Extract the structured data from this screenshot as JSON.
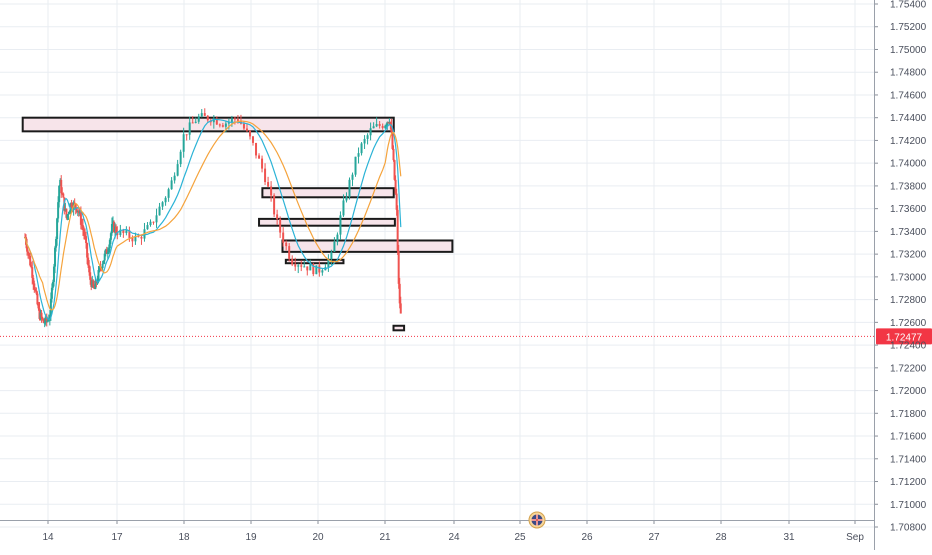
{
  "chart_data": {
    "type": "candlestick",
    "title": "",
    "xlabel": "",
    "ylabel": "",
    "ylim": [
      1.708,
      1.7542
    ],
    "y_ticks": [
      "1.75400",
      "1.75200",
      "1.75000",
      "1.74800",
      "1.74600",
      "1.74400",
      "1.74200",
      "1.74000",
      "1.73800",
      "1.73600",
      "1.73400",
      "1.73200",
      "1.73000",
      "1.72800",
      "1.72600",
      "1.72400",
      "1.72200",
      "1.72000",
      "1.71800",
      "1.71600",
      "1.71400",
      "1.71200",
      "1.71000",
      "1.70800"
    ],
    "x_ticks": [
      "14",
      "17",
      "18",
      "19",
      "20",
      "21",
      "24",
      "25",
      "26",
      "27",
      "28",
      "31",
      "Sep"
    ],
    "grid": true,
    "current_price": {
      "value": 1.72477,
      "label": "1.72477",
      "color": "#f23645"
    },
    "colors": {
      "up": "#26a69a",
      "down": "#ef5350",
      "ma_fast": "#2bb3d6",
      "ma_slow": "#f5a33c",
      "zone_fill": "#f7e4ea",
      "zone_border": "#1a1a1a",
      "grid": "#e9edf2"
    },
    "price_path": {
      "x_days": [
        13.0,
        13.3,
        13.6,
        13.8,
        14.0,
        14.1,
        14.3,
        14.5,
        14.8,
        15.0,
        15.3,
        15.6,
        15.8,
        16.0,
        16.3,
        16.6,
        16.8,
        17.0,
        17.3,
        17.5,
        17.8,
        18.0,
        18.2,
        18.4,
        18.6,
        18.8,
        19.0,
        19.2,
        19.4,
        19.6,
        19.8,
        20.0,
        20.2,
        20.4,
        20.6,
        20.8,
        21.0,
        21.2,
        21.3,
        21.5,
        21.6,
        21.7
      ],
      "closes": [
        1.7335,
        1.7305,
        1.7268,
        1.726,
        1.7262,
        1.727,
        1.7322,
        1.7385,
        1.7352,
        1.7365,
        1.736,
        1.7335,
        1.73,
        1.7288,
        1.731,
        1.7325,
        1.7345,
        1.734,
        1.7333,
        1.7345,
        1.738,
        1.7425,
        1.744,
        1.744,
        1.7435,
        1.744,
        1.742,
        1.739,
        1.7345,
        1.7315,
        1.731,
        1.7305,
        1.7318,
        1.7368,
        1.741,
        1.743,
        1.7435,
        1.744,
        1.742,
        1.736,
        1.7288,
        1.7262
      ]
    },
    "zones": [
      {
        "x0": 12.9,
        "x1": 21.38,
        "y_top": 1.744,
        "y_bottom": 1.7428
      },
      {
        "x0": 19.17,
        "x1": 21.38,
        "y_top": 1.7378,
        "y_bottom": 1.737
      },
      {
        "x0": 19.12,
        "x1": 21.43,
        "y_top": 1.7351,
        "y_bottom": 1.7345
      },
      {
        "x0": 19.47,
        "x1": 23.93,
        "y_top": 1.7332,
        "y_bottom": 1.7322
      },
      {
        "x0": 19.52,
        "x1": 20.38,
        "y_top": 1.7315,
        "y_bottom": 1.7312
      },
      {
        "x0": 21.37,
        "x1": 21.83,
        "y_top": 1.7257,
        "y_bottom": 1.7253
      }
    ],
    "watermark_icon": "tradingview-flag-icon"
  }
}
